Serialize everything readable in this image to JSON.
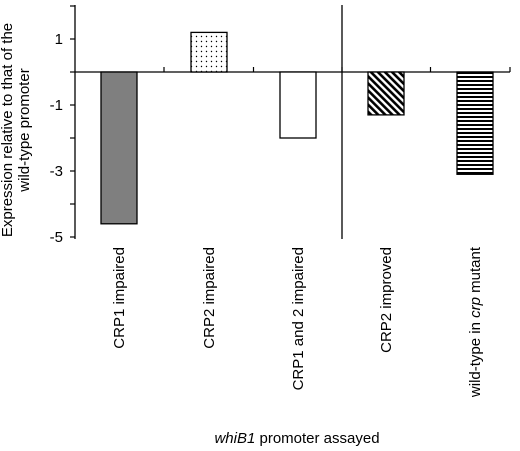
{
  "chart_data": {
    "type": "bar",
    "categories": [
      "CRP1 impaired",
      "CRP2 impaired",
      "CRP1 and 2 impaired",
      "CRP2 improved",
      "wild-type in crp mutant"
    ],
    "category_labels": [
      [
        {
          "t": "CRP1 impaired",
          "i": false
        }
      ],
      [
        {
          "t": "CRP2 impaired",
          "i": false
        }
      ],
      [
        {
          "t": "CRP1 and 2 impaired",
          "i": false
        }
      ],
      [
        {
          "t": "CRP2 improved",
          "i": false
        }
      ],
      [
        {
          "t": "wild-type in ",
          "i": false
        },
        {
          "t": "crp",
          "i": true
        },
        {
          "t": " mutant",
          "i": false
        }
      ]
    ],
    "values": [
      -4.6,
      1.2,
      -2.0,
      -1.3,
      -3.1
    ],
    "fills": [
      "dark-gray",
      "dotted",
      "white",
      "diagonal-hatch",
      "horizontal-stripes"
    ],
    "ylim": [
      -5,
      2
    ],
    "yticks": [
      1,
      -1,
      -3,
      -5
    ],
    "ylabel_lines": [
      "Expression relative to that of the",
      "wild-type promoter"
    ],
    "xlabel_parts": [
      {
        "t": "whiB1",
        "i": true
      },
      {
        "t": " promoter assayed",
        "i": false
      }
    ],
    "divider_after_category": 2,
    "colors": {
      "bar_dark": "#7f7f7f",
      "stroke": "#000000",
      "background": "#ffffff"
    }
  }
}
